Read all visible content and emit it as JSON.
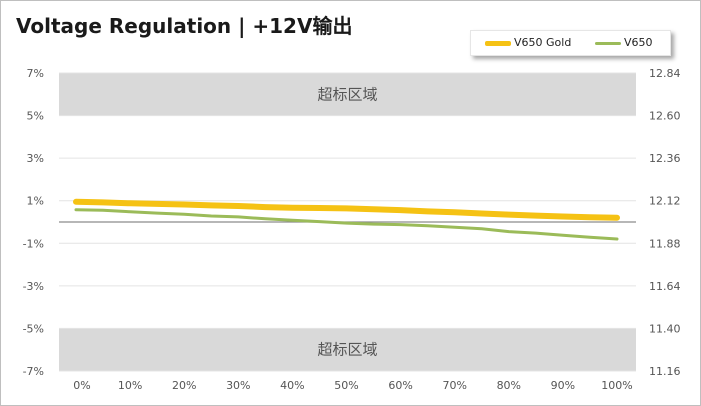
{
  "title": "Voltage Regulation | +12V输出",
  "chart_data": {
    "type": "line",
    "title": "Voltage Regulation | +12V输出",
    "categories": [
      "0%",
      "10%",
      "20%",
      "30%",
      "40%",
      "50%",
      "60%",
      "70%",
      "80%",
      "90%",
      "100%"
    ],
    "x": [
      0,
      5,
      10,
      15,
      20,
      25,
      30,
      35,
      40,
      45,
      50,
      55,
      60,
      65,
      70,
      75,
      80,
      85,
      90,
      95,
      100
    ],
    "left_axis": {
      "ylim": [
        -7,
        7
      ],
      "ticks": [
        "7%",
        "5%",
        "3%",
        "1%",
        "-1%",
        "-3%",
        "-5%",
        "-7%"
      ],
      "tick_values": [
        7,
        5,
        3,
        1,
        -1,
        -3,
        -5,
        -7
      ]
    },
    "right_axis": {
      "ticks": [
        "12.84",
        "12.60",
        "12.36",
        "12.12",
        "11.88",
        "11.64",
        "11.40",
        "11.16"
      ]
    },
    "zones": [
      {
        "label": "超标区域",
        "from": 5,
        "to": 7
      },
      {
        "label": "超标区域",
        "from": -7,
        "to": -5
      }
    ],
    "reference_line": 0,
    "series": [
      {
        "name": "V650 Gold",
        "color": "#f5c214",
        "values": [
          0.95,
          0.92,
          0.88,
          0.85,
          0.82,
          0.78,
          0.75,
          0.7,
          0.67,
          0.66,
          0.64,
          0.6,
          0.56,
          0.5,
          0.46,
          0.4,
          0.35,
          0.3,
          0.26,
          0.22,
          0.2
        ]
      },
      {
        "name": "V650",
        "color": "#9bbb59",
        "values": [
          0.58,
          0.55,
          0.48,
          0.42,
          0.36,
          0.28,
          0.24,
          0.15,
          0.08,
          0.02,
          -0.05,
          -0.1,
          -0.12,
          -0.18,
          -0.25,
          -0.32,
          -0.45,
          -0.52,
          -0.62,
          -0.72,
          -0.8
        ]
      }
    ],
    "grid": true,
    "legend_position": "top-right"
  }
}
